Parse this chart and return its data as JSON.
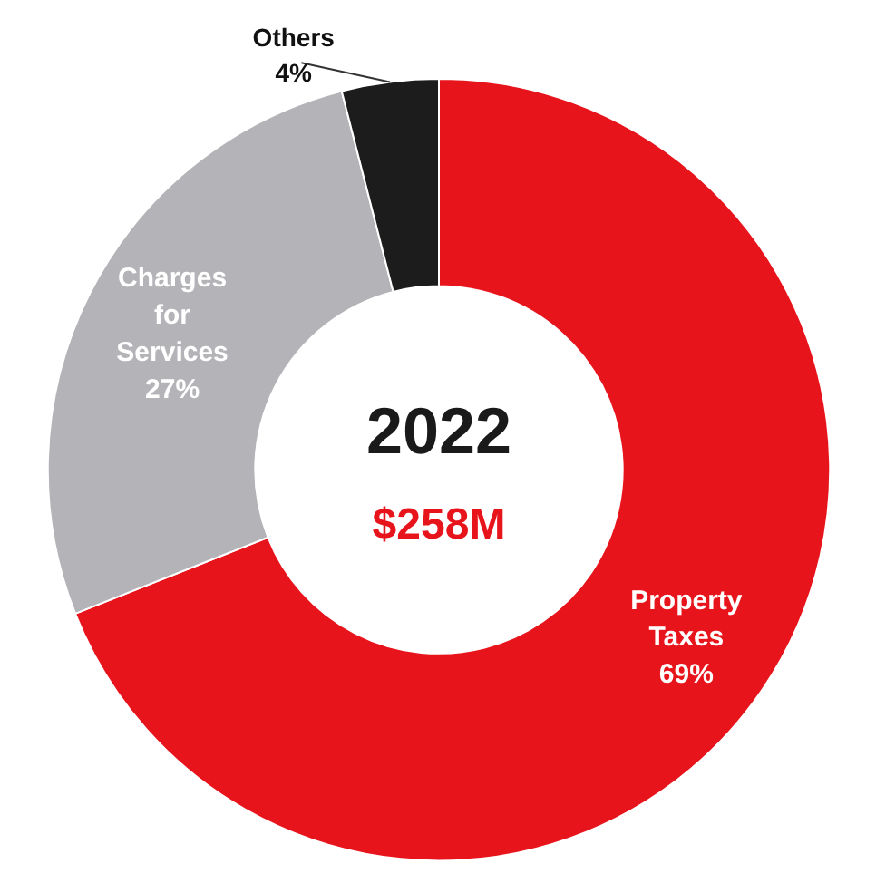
{
  "chart_data": {
    "type": "donut",
    "title": "2022",
    "subtitle": "$258M",
    "categories": [
      "Property Taxes",
      "Charges for Services",
      "Others"
    ],
    "values": [
      69,
      27,
      4
    ],
    "colors": [
      "#e8141c",
      "#b4b4b8",
      "#1c1c1c"
    ],
    "value_labels": [
      "69%",
      "27%",
      "4%"
    ]
  }
}
